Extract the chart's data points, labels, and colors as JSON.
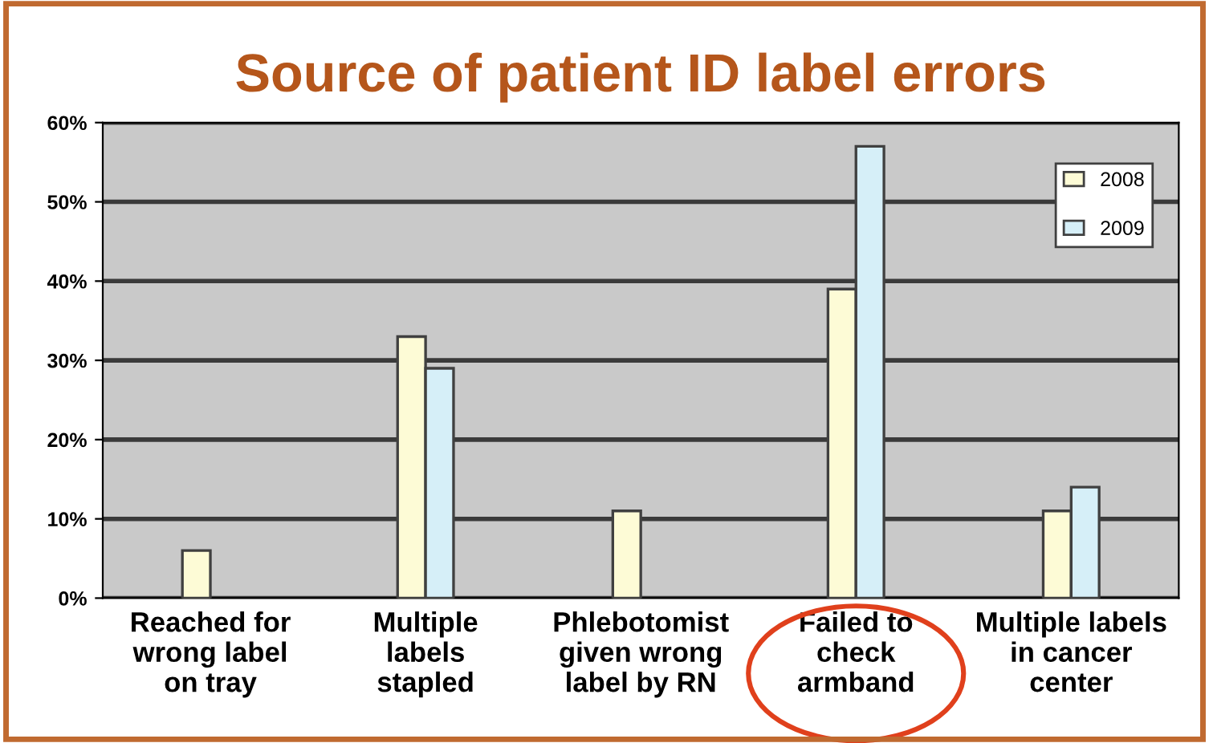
{
  "chart_data": {
    "type": "bar",
    "title": "Source of patient ID label errors",
    "categories": [
      "Reached for\nwrong label\non tray",
      "Multiple\nlabels\nstapled",
      "Phlebotomist\ngiven wrong\nlabel by RN",
      "Failed to\ncheck\narmband",
      "Multiple labels\nin cancer\ncenter"
    ],
    "series": [
      {
        "name": "2008",
        "color": "#fdfbd6",
        "values": [
          6,
          33,
          11,
          39,
          11
        ]
      },
      {
        "name": "2009",
        "color": "#d6eff8",
        "values": [
          null,
          29,
          null,
          57,
          14
        ]
      }
    ],
    "ylim": [
      0,
      60
    ],
    "yticks": [
      {
        "value": 0,
        "label": "0%"
      },
      {
        "value": 10,
        "label": "10%"
      },
      {
        "value": 20,
        "label": "20%"
      },
      {
        "value": 30,
        "label": "30%"
      },
      {
        "value": 40,
        "label": "40%"
      },
      {
        "value": 50,
        "label": "50%"
      },
      {
        "value": 60,
        "label": "60%"
      }
    ],
    "grid": "y",
    "legend": "top right"
  }
}
